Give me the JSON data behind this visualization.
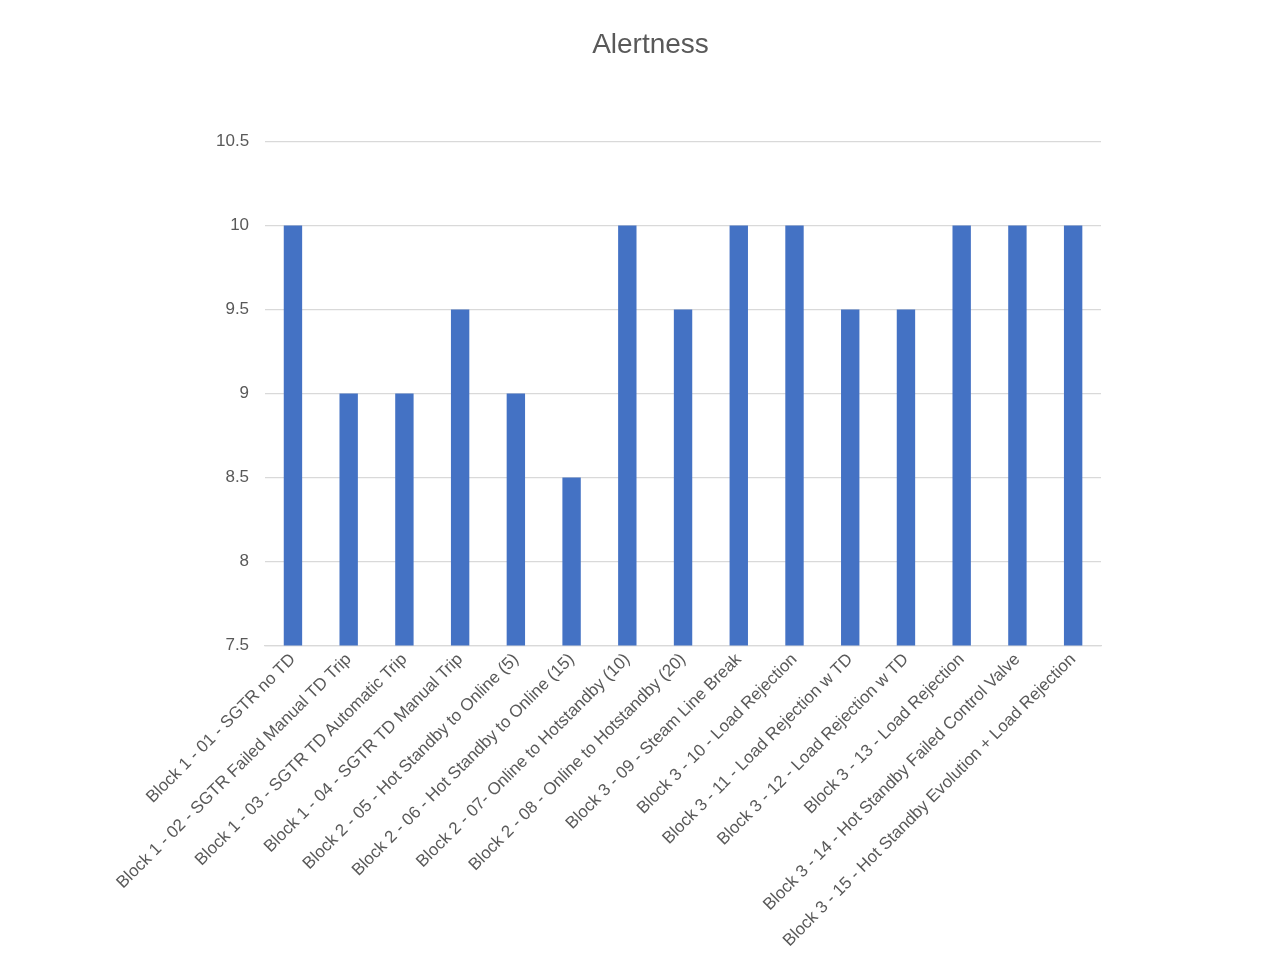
{
  "chart_data": {
    "type": "bar",
    "title": "Alertness",
    "categories": [
      "Block 1 - 01 - SGTR no TD",
      "Block 1 - 02 - SGTR Failed Manual TD Trip",
      "Block 1 - 03 - SGTR TD Automatic Trip",
      "Block 1 - 04 - SGTR TD Manual Trip",
      "Block 2 - 05 - Hot Standby to Online (5)",
      "Block 2 - 06 - Hot Standby to Online (15)",
      "Block 2 - 07- Online to Hotstandby (10)",
      "Block 2 - 08 - Online to Hotstandby (20)",
      "Block 3 - 09 - Steam Line Break",
      "Block 3 - 10 - Load Rejection",
      "Block 3 - 11 - Load Rejection w TD",
      "Block 3 - 12 - Load Rejection w TD",
      "Block 3 - 13 - Load Rejection",
      "Block 3 - 14 - Hot Standby Failed Control Valve",
      "Block 3 - 15 - Hot Standby Evolution + Load Rejection"
    ],
    "values": [
      10,
      9,
      9,
      9.5,
      9,
      8.5,
      10,
      9.5,
      10,
      10,
      9.5,
      9.5,
      10,
      10,
      10
    ],
    "color": "#4472c4",
    "ylim": [
      7.5,
      10.5
    ],
    "yticks": [
      7.5,
      8,
      8.5,
      9,
      9.5,
      10,
      10.5
    ],
    "grid": "y"
  }
}
